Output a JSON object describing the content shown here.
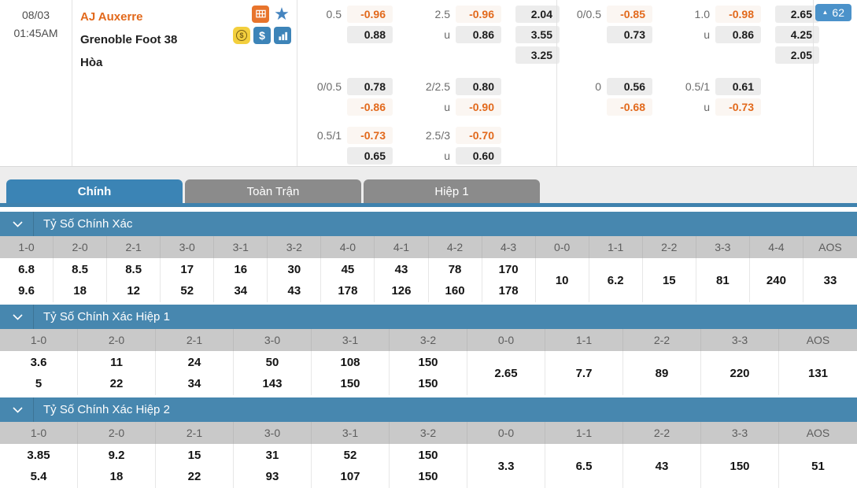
{
  "colors": {
    "accent_orange": "#e2691c",
    "tab_blue": "#3b84b5",
    "section_header_blue": "#4787af",
    "badge_blue": "#4b92ca",
    "table_header_gray": "#c9c9c9",
    "pill_gray": "#ececec"
  },
  "match": {
    "date": "08/03",
    "time": "01:45AM",
    "home": "AJ Auxerre",
    "away": "Grenoble Foot 38",
    "draw": "Hòa",
    "live_count": "62",
    "icons": [
      "goal-icon",
      "star-icon",
      "coin-icon",
      "dollar-icon",
      "stats-icon"
    ]
  },
  "odds": {
    "under_label": "u",
    "panels": [
      {
        "groups": [
          {
            "hdp": "0.5",
            "hdp_vals": [
              "-0.96",
              "0.88"
            ],
            "ou": "2.5",
            "ou_vals": [
              "-0.96",
              "0.86"
            ],
            "x12": [
              "2.04",
              "3.55",
              "3.25"
            ]
          },
          {
            "hdp": "0/0.5",
            "hdp_vals": [
              "0.78",
              "-0.86"
            ],
            "ou": "2/2.5",
            "ou_vals": [
              "0.80",
              "-0.90"
            ],
            "x12": []
          },
          {
            "hdp": "0.5/1",
            "hdp_vals": [
              "-0.73",
              "0.65"
            ],
            "ou": "2.5/3",
            "ou_vals": [
              "-0.70",
              "0.60"
            ],
            "x12": []
          }
        ]
      },
      {
        "groups": [
          {
            "hdp": "0/0.5",
            "hdp_vals": [
              "-0.85",
              "0.73"
            ],
            "ou": "1.0",
            "ou_vals": [
              "-0.98",
              "0.86"
            ],
            "x12": [
              "2.65",
              "4.25",
              "2.05"
            ]
          },
          {
            "hdp": "0",
            "hdp_vals": [
              "0.56",
              "-0.68"
            ],
            "ou": "0.5/1",
            "ou_vals": [
              "0.61",
              "-0.73"
            ],
            "x12": []
          }
        ]
      }
    ]
  },
  "tabs": [
    {
      "label": "Chính",
      "active": true
    },
    {
      "label": "Toàn Trận",
      "active": false
    },
    {
      "label": "Hiệp 1",
      "active": false
    }
  ],
  "score_tables": [
    {
      "title": "Tỷ Số Chính Xác",
      "columns": [
        "1-0",
        "2-0",
        "2-1",
        "3-0",
        "3-1",
        "3-2",
        "4-0",
        "4-1",
        "4-2",
        "4-3",
        "0-0",
        "1-1",
        "2-2",
        "3-3",
        "4-4",
        "AOS"
      ],
      "pairs": [
        [
          "6.8",
          "9.6"
        ],
        [
          "8.5",
          "18"
        ],
        [
          "8.5",
          "12"
        ],
        [
          "17",
          "52"
        ],
        [
          "16",
          "34"
        ],
        [
          "30",
          "43"
        ],
        [
          "45",
          "178"
        ],
        [
          "43",
          "126"
        ],
        [
          "78",
          "160"
        ],
        [
          "170",
          "178"
        ]
      ],
      "singles": [
        "10",
        "6.2",
        "15",
        "81",
        "240",
        "33"
      ]
    },
    {
      "title": "Tỷ Số Chính Xác Hiệp 1",
      "columns": [
        "1-0",
        "2-0",
        "2-1",
        "3-0",
        "3-1",
        "3-2",
        "0-0",
        "1-1",
        "2-2",
        "3-3",
        "AOS"
      ],
      "pairs": [
        [
          "3.6",
          "5"
        ],
        [
          "11",
          "22"
        ],
        [
          "24",
          "34"
        ],
        [
          "50",
          "143"
        ],
        [
          "108",
          "150"
        ],
        [
          "150",
          "150"
        ]
      ],
      "singles": [
        "2.65",
        "7.7",
        "89",
        "220",
        "131"
      ]
    },
    {
      "title": "Tỷ Số Chính Xác Hiệp 2",
      "columns": [
        "1-0",
        "2-0",
        "2-1",
        "3-0",
        "3-1",
        "3-2",
        "0-0",
        "1-1",
        "2-2",
        "3-3",
        "AOS"
      ],
      "pairs": [
        [
          "3.85",
          "5.4"
        ],
        [
          "9.2",
          "18"
        ],
        [
          "15",
          "22"
        ],
        [
          "31",
          "93"
        ],
        [
          "52",
          "107"
        ],
        [
          "150",
          "150"
        ]
      ],
      "singles": [
        "3.3",
        "6.5",
        "43",
        "150",
        "51"
      ]
    }
  ]
}
